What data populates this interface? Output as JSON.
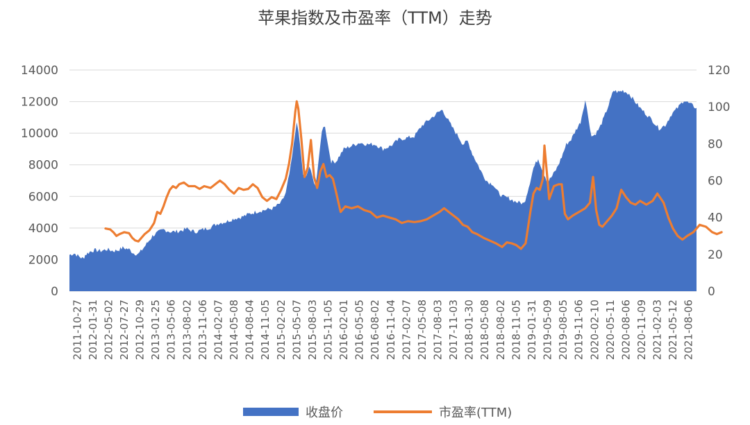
{
  "chart_data": {
    "type": "area+line",
    "title": "苹果指数及市盈率（TTM）走势",
    "legend_position": "bottom",
    "grid": true,
    "y_left": {
      "min": 0,
      "max": 14000,
      "ticks": [
        "0",
        "2000",
        "4000",
        "6000",
        "8000",
        "10000",
        "12000",
        "14000"
      ]
    },
    "y_right": {
      "min": 0,
      "max": 120,
      "ticks": [
        "0",
        "20",
        "40",
        "60",
        "80",
        "100",
        "120"
      ]
    },
    "x_tick_labels": [
      "2011-10-27",
      "2012-01-31",
      "2012-05-02",
      "2012-07-27",
      "2012-10-29",
      "2013-01-25",
      "2013-05-06",
      "2013-08-02",
      "2013-11-06",
      "2014-02-07",
      "2014-05-08",
      "2014-08-04",
      "2014-11-05",
      "2015-02-02",
      "2015-05-07",
      "2015-08-03",
      "2015-11-05",
      "2016-02-01",
      "2016-05-05",
      "2016-08-02",
      "2016-11-04",
      "2017-02-07",
      "2017-05-08",
      "2017-08-03",
      "2017-11-03",
      "2018-01-30",
      "2018-05-08",
      "2018-08-02",
      "2018-11-05",
      "2019-01-31",
      "2019-05-09",
      "2019-08-05",
      "2019-11-06",
      "2020-02-10",
      "2020-05-11",
      "2020-08-06",
      "2020-11-09",
      "2021-02-03",
      "2021-05-12",
      "2021-08-06"
    ],
    "series": [
      {
        "name": "收盘价",
        "type": "area",
        "axis": "left",
        "color": "#4472C4",
        "points": [
          [
            0,
            2300
          ],
          [
            0.3,
            2400
          ],
          [
            0.6,
            2200
          ],
          [
            0.9,
            2050
          ],
          [
            1.0,
            2300
          ],
          [
            1.3,
            2500
          ],
          [
            1.6,
            2600
          ],
          [
            2.0,
            2550
          ],
          [
            2.4,
            2650
          ],
          [
            2.8,
            2550
          ],
          [
            3.1,
            2600
          ],
          [
            3.4,
            2750
          ],
          [
            3.8,
            2650
          ],
          [
            4.1,
            2400
          ],
          [
            4.4,
            2350
          ],
          [
            4.7,
            2700
          ],
          [
            5.0,
            3100
          ],
          [
            5.3,
            3500
          ],
          [
            5.6,
            3700
          ],
          [
            6.0,
            3900
          ],
          [
            6.5,
            3750
          ],
          [
            7.0,
            3800
          ],
          [
            7.5,
            3950
          ],
          [
            8.0,
            3750
          ],
          [
            8.5,
            3900
          ],
          [
            9.0,
            4050
          ],
          [
            9.5,
            4300
          ],
          [
            10.0,
            4400
          ],
          [
            10.5,
            4600
          ],
          [
            11.0,
            4700
          ],
          [
            11.5,
            4900
          ],
          [
            12.0,
            5050
          ],
          [
            12.5,
            5150
          ],
          [
            13.0,
            5250
          ],
          [
            13.5,
            5600
          ],
          [
            13.8,
            6200
          ],
          [
            14.1,
            7800
          ],
          [
            14.3,
            9200
          ],
          [
            14.5,
            10800
          ],
          [
            14.7,
            9300
          ],
          [
            14.9,
            7400
          ],
          [
            15.1,
            7200
          ],
          [
            15.3,
            7900
          ],
          [
            15.5,
            7200
          ],
          [
            15.7,
            6700
          ],
          [
            15.9,
            8200
          ],
          [
            16.1,
            10200
          ],
          [
            16.3,
            10500
          ],
          [
            16.5,
            9200
          ],
          [
            16.7,
            8200
          ],
          [
            17.0,
            8200
          ],
          [
            17.5,
            9000
          ],
          [
            18.0,
            9200
          ],
          [
            18.5,
            9400
          ],
          [
            19.0,
            9300
          ],
          [
            19.5,
            9300
          ],
          [
            20.0,
            9000
          ],
          [
            20.5,
            9200
          ],
          [
            21.0,
            9600
          ],
          [
            21.5,
            9700
          ],
          [
            22.0,
            9800
          ],
          [
            22.5,
            10500
          ],
          [
            23.0,
            10900
          ],
          [
            23.5,
            11300
          ],
          [
            23.8,
            11500
          ],
          [
            24.0,
            11100
          ],
          [
            24.4,
            10400
          ],
          [
            24.8,
            9800
          ],
          [
            25.1,
            9300
          ],
          [
            25.4,
            9500
          ],
          [
            25.7,
            8700
          ],
          [
            26.0,
            8100
          ],
          [
            26.4,
            7300
          ],
          [
            26.7,
            6900
          ],
          [
            27.0,
            6800
          ],
          [
            27.3,
            6300
          ],
          [
            27.6,
            6000
          ],
          [
            28.0,
            5900
          ],
          [
            28.5,
            5650
          ],
          [
            29.0,
            5550
          ],
          [
            29.3,
            6600
          ],
          [
            29.6,
            7800
          ],
          [
            29.9,
            8400
          ],
          [
            30.2,
            7600
          ],
          [
            30.5,
            6900
          ],
          [
            30.8,
            7300
          ],
          [
            31.1,
            7800
          ],
          [
            31.4,
            8500
          ],
          [
            31.7,
            9300
          ],
          [
            32.0,
            9600
          ],
          [
            32.3,
            10200
          ],
          [
            32.6,
            10700
          ],
          [
            32.9,
            12100
          ],
          [
            33.1,
            11000
          ],
          [
            33.3,
            9800
          ],
          [
            33.5,
            9900
          ],
          [
            33.8,
            10300
          ],
          [
            34.1,
            11000
          ],
          [
            34.4,
            11800
          ],
          [
            34.7,
            12700
          ],
          [
            35.0,
            12600
          ],
          [
            35.3,
            12700
          ],
          [
            35.7,
            12500
          ],
          [
            36.0,
            12100
          ],
          [
            36.4,
            11600
          ],
          [
            36.8,
            11200
          ],
          [
            37.2,
            10800
          ],
          [
            37.6,
            10300
          ],
          [
            38.0,
            10500
          ],
          [
            38.4,
            11200
          ],
          [
            38.8,
            11600
          ],
          [
            39.2,
            12100
          ],
          [
            39.5,
            11900
          ],
          [
            40.0,
            11600
          ]
        ]
      },
      {
        "name": "市盈率(TTM)",
        "type": "line",
        "axis": "right",
        "color": "#ED7D31",
        "points": [
          [
            2.3,
            34
          ],
          [
            2.6,
            33.5
          ],
          [
            2.8,
            32
          ],
          [
            3.0,
            30
          ],
          [
            3.2,
            31
          ],
          [
            3.5,
            32
          ],
          [
            3.8,
            31.5
          ],
          [
            4.0,
            29
          ],
          [
            4.2,
            27.5
          ],
          [
            4.4,
            27
          ],
          [
            4.6,
            29
          ],
          [
            4.8,
            31
          ],
          [
            5.1,
            33
          ],
          [
            5.4,
            37
          ],
          [
            5.6,
            43
          ],
          [
            5.8,
            42
          ],
          [
            6.0,
            46
          ],
          [
            6.2,
            51
          ],
          [
            6.4,
            55
          ],
          [
            6.6,
            57
          ],
          [
            6.8,
            56
          ],
          [
            7.0,
            58
          ],
          [
            7.3,
            59
          ],
          [
            7.6,
            57
          ],
          [
            8.0,
            57
          ],
          [
            8.3,
            55.5
          ],
          [
            8.6,
            57
          ],
          [
            9.0,
            56
          ],
          [
            9.3,
            58
          ],
          [
            9.6,
            60
          ],
          [
            9.9,
            58
          ],
          [
            10.2,
            55
          ],
          [
            10.5,
            53
          ],
          [
            10.8,
            56
          ],
          [
            11.1,
            55
          ],
          [
            11.4,
            55.5
          ],
          [
            11.7,
            58
          ],
          [
            12.0,
            56
          ],
          [
            12.3,
            51
          ],
          [
            12.6,
            49
          ],
          [
            12.9,
            51
          ],
          [
            13.2,
            50
          ],
          [
            13.5,
            55
          ],
          [
            13.8,
            61
          ],
          [
            14.0,
            69
          ],
          [
            14.2,
            80
          ],
          [
            14.4,
            97
          ],
          [
            14.5,
            103
          ],
          [
            14.6,
            99
          ],
          [
            14.8,
            82
          ],
          [
            15.0,
            62
          ],
          [
            15.2,
            67
          ],
          [
            15.4,
            82
          ],
          [
            15.6,
            62
          ],
          [
            15.8,
            56
          ],
          [
            16.0,
            65
          ],
          [
            16.2,
            69
          ],
          [
            16.4,
            62
          ],
          [
            16.6,
            63
          ],
          [
            16.8,
            61
          ],
          [
            17.0,
            54
          ],
          [
            17.3,
            43
          ],
          [
            17.6,
            46
          ],
          [
            18.0,
            45
          ],
          [
            18.4,
            46
          ],
          [
            18.8,
            44
          ],
          [
            19.2,
            43
          ],
          [
            19.6,
            40
          ],
          [
            20.0,
            41
          ],
          [
            20.4,
            40
          ],
          [
            20.8,
            39
          ],
          [
            21.2,
            37
          ],
          [
            21.6,
            38
          ],
          [
            22.0,
            37.5
          ],
          [
            22.4,
            38
          ],
          [
            22.8,
            39
          ],
          [
            23.2,
            41
          ],
          [
            23.6,
            43
          ],
          [
            23.9,
            45
          ],
          [
            24.2,
            43
          ],
          [
            24.5,
            41
          ],
          [
            24.8,
            39
          ],
          [
            25.1,
            36
          ],
          [
            25.4,
            35
          ],
          [
            25.7,
            32
          ],
          [
            26.0,
            31
          ],
          [
            26.4,
            29
          ],
          [
            26.8,
            27.5
          ],
          [
            27.2,
            26
          ],
          [
            27.6,
            24
          ],
          [
            27.9,
            26.5
          ],
          [
            28.2,
            26
          ],
          [
            28.5,
            25
          ],
          [
            28.8,
            23
          ],
          [
            29.1,
            26
          ],
          [
            29.4,
            43
          ],
          [
            29.6,
            53
          ],
          [
            29.8,
            56
          ],
          [
            30.0,
            55
          ],
          [
            30.2,
            61
          ],
          [
            30.3,
            79
          ],
          [
            30.5,
            60
          ],
          [
            30.6,
            50
          ],
          [
            30.9,
            57
          ],
          [
            31.2,
            58
          ],
          [
            31.4,
            58
          ],
          [
            31.6,
            42
          ],
          [
            31.8,
            39
          ],
          [
            32.1,
            41
          ],
          [
            32.5,
            43
          ],
          [
            32.9,
            45
          ],
          [
            33.2,
            48
          ],
          [
            33.4,
            62
          ],
          [
            33.6,
            44
          ],
          [
            33.8,
            36
          ],
          [
            34.0,
            35
          ],
          [
            34.3,
            38
          ],
          [
            34.6,
            41
          ],
          [
            34.9,
            45
          ],
          [
            35.2,
            55
          ],
          [
            35.5,
            51
          ],
          [
            35.8,
            48
          ],
          [
            36.1,
            47
          ],
          [
            36.4,
            49
          ],
          [
            36.8,
            47
          ],
          [
            37.2,
            49
          ],
          [
            37.5,
            53
          ],
          [
            37.9,
            48
          ],
          [
            38.2,
            40
          ],
          [
            38.5,
            34
          ],
          [
            38.8,
            30
          ],
          [
            39.1,
            28
          ],
          [
            39.4,
            30
          ],
          [
            39.8,
            32
          ],
          [
            40.2,
            36
          ],
          [
            40.6,
            35
          ],
          [
            41.0,
            32
          ],
          [
            41.3,
            31
          ],
          [
            41.6,
            32
          ]
        ]
      }
    ]
  }
}
